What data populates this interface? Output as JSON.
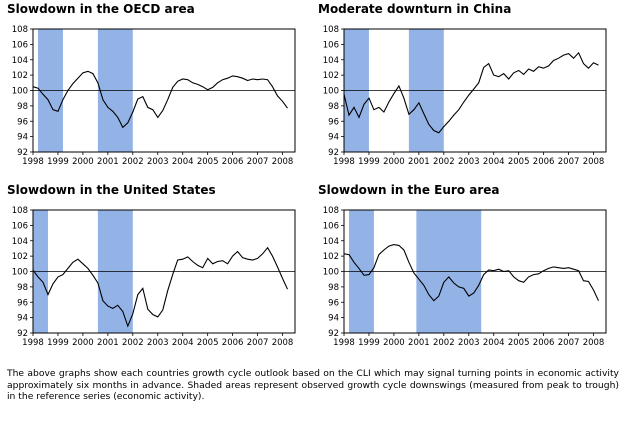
{
  "caption": "The above graphs show each countries growth cycle outlook based on the CLI which may signal turning points in economic activity approximately six months in advance. Shaded areas represent observed growth cycle downswings (measured from peak to trough) in the reference series (economic activity).",
  "colors": {
    "shade": "#93b3e6",
    "line": "#000000",
    "reference": "#000000",
    "frame": "#000000"
  },
  "chart_data": [
    {
      "type": "line",
      "title": "Slowdown in the OECD area",
      "ylim": [
        92,
        108
      ],
      "yticks": [
        92,
        94,
        96,
        98,
        100,
        102,
        104,
        106,
        108
      ],
      "xlim": [
        1998,
        2008.5
      ],
      "xticks": [
        "1998",
        "1999",
        "2000",
        "2001",
        "2002",
        "2003",
        "2004",
        "2005",
        "2006",
        "2007",
        "2008"
      ],
      "reference_line": 100,
      "shaded_periods": [
        [
          1998.2,
          1999.2
        ],
        [
          2000.6,
          2002.0
        ]
      ],
      "series": [
        {
          "x": [
            1998.0,
            1998.2,
            1998.4,
            1998.6,
            1998.8,
            1999.0,
            1999.2,
            1999.4,
            1999.6,
            1999.8,
            2000.0,
            2000.2,
            2000.4,
            2000.6,
            2000.8,
            2001.0,
            2001.2,
            2001.4,
            2001.6,
            2001.8,
            2002.0,
            2002.2,
            2002.4,
            2002.6,
            2002.8,
            2003.0,
            2003.2,
            2003.4,
            2003.6,
            2003.8,
            2004.0,
            2004.2,
            2004.4,
            2004.6,
            2004.8,
            2005.0,
            2005.2,
            2005.4,
            2005.6,
            2005.8,
            2006.0,
            2006.2,
            2006.4,
            2006.6,
            2006.8,
            2007.0,
            2007.2,
            2007.4,
            2007.6,
            2007.8,
            2008.0,
            2008.2
          ],
          "y": [
            100.5,
            100.3,
            99.5,
            98.8,
            97.5,
            97.3,
            98.8,
            100.0,
            100.9,
            101.6,
            102.3,
            102.5,
            102.2,
            101.0,
            98.8,
            97.8,
            97.3,
            96.5,
            95.2,
            95.8,
            97.2,
            98.9,
            99.2,
            97.8,
            97.5,
            96.5,
            97.4,
            98.8,
            100.4,
            101.2,
            101.5,
            101.4,
            101.0,
            100.8,
            100.5,
            100.1,
            100.4,
            101.0,
            101.4,
            101.6,
            101.9,
            101.8,
            101.6,
            101.3,
            101.5,
            101.4,
            101.5,
            101.4,
            100.5,
            99.3,
            98.6,
            97.7
          ]
        }
      ]
    },
    {
      "type": "line",
      "title": "Moderate downturn in China",
      "ylim": [
        92,
        108
      ],
      "yticks": [
        92,
        94,
        96,
        98,
        100,
        102,
        104,
        106,
        108
      ],
      "xlim": [
        1998,
        2008.5
      ],
      "xticks": [
        "1998",
        "1999",
        "2000",
        "2001",
        "2002",
        "2003",
        "2004",
        "2005",
        "2006",
        "2007",
        "2008"
      ],
      "reference_line": 100,
      "shaded_periods": [
        [
          1998.0,
          1999.0
        ],
        [
          2000.6,
          2002.0
        ]
      ],
      "series": [
        {
          "x": [
            1998.0,
            1998.2,
            1998.4,
            1998.6,
            1998.8,
            1999.0,
            1999.2,
            1999.4,
            1999.6,
            1999.8,
            2000.0,
            2000.2,
            2000.4,
            2000.6,
            2000.8,
            2001.0,
            2001.2,
            2001.4,
            2001.6,
            2001.8,
            2002.0,
            2002.2,
            2002.4,
            2002.6,
            2002.8,
            2003.0,
            2003.2,
            2003.4,
            2003.6,
            2003.8,
            2004.0,
            2004.2,
            2004.4,
            2004.6,
            2004.8,
            2005.0,
            2005.2,
            2005.4,
            2005.6,
            2005.8,
            2006.0,
            2006.2,
            2006.4,
            2006.6,
            2006.8,
            2007.0,
            2007.2,
            2007.4,
            2007.6,
            2007.8,
            2008.0,
            2008.2
          ],
          "y": [
            99.5,
            96.8,
            97.8,
            96.5,
            98.2,
            99.0,
            97.5,
            97.8,
            97.2,
            98.5,
            99.6,
            100.6,
            99.0,
            96.9,
            97.5,
            98.4,
            97.0,
            95.6,
            94.8,
            94.5,
            95.3,
            96.0,
            96.8,
            97.5,
            98.5,
            99.4,
            100.2,
            101.0,
            103.0,
            103.5,
            102.0,
            101.8,
            102.2,
            101.5,
            102.3,
            102.6,
            102.1,
            102.8,
            102.5,
            103.1,
            102.9,
            103.2,
            103.9,
            104.2,
            104.6,
            104.8,
            104.2,
            104.9,
            103.5,
            102.9,
            103.6,
            103.3
          ]
        }
      ]
    },
    {
      "type": "line",
      "title": "Slowdown in the United States",
      "ylim": [
        92,
        108
      ],
      "yticks": [
        92,
        94,
        96,
        98,
        100,
        102,
        104,
        106,
        108
      ],
      "xlim": [
        1998,
        2008.5
      ],
      "xticks": [
        "1998",
        "1999",
        "2000",
        "2001",
        "2002",
        "2003",
        "2004",
        "2005",
        "2006",
        "2007",
        "2008"
      ],
      "reference_line": 100,
      "shaded_periods": [
        [
          1998.0,
          1998.6
        ],
        [
          2000.6,
          2002.0
        ]
      ],
      "series": [
        {
          "x": [
            1998.0,
            1998.2,
            1998.4,
            1998.6,
            1998.8,
            1999.0,
            1999.2,
            1999.4,
            1999.6,
            1999.8,
            2000.0,
            2000.2,
            2000.4,
            2000.6,
            2000.8,
            2001.0,
            2001.2,
            2001.4,
            2001.6,
            2001.8,
            2002.0,
            2002.2,
            2002.4,
            2002.6,
            2002.8,
            2003.0,
            2003.2,
            2003.4,
            2003.6,
            2003.8,
            2004.0,
            2004.2,
            2004.4,
            2004.6,
            2004.8,
            2005.0,
            2005.2,
            2005.4,
            2005.6,
            2005.8,
            2006.0,
            2006.2,
            2006.4,
            2006.6,
            2006.8,
            2007.0,
            2007.2,
            2007.4,
            2007.6,
            2007.8,
            2008.0,
            2008.2
          ],
          "y": [
            100.2,
            99.3,
            98.6,
            97.0,
            98.4,
            99.3,
            99.6,
            100.4,
            101.2,
            101.6,
            101.0,
            100.4,
            99.5,
            98.5,
            96.2,
            95.5,
            95.2,
            95.6,
            94.8,
            92.9,
            94.5,
            97.0,
            97.8,
            95.1,
            94.4,
            94.1,
            95.0,
            97.5,
            99.6,
            101.5,
            101.6,
            101.9,
            101.3,
            100.8,
            100.5,
            101.7,
            101.0,
            101.3,
            101.4,
            101.0,
            102.0,
            102.6,
            101.8,
            101.6,
            101.5,
            101.7,
            102.3,
            103.1,
            102.0,
            100.6,
            99.1,
            97.7
          ]
        }
      ]
    },
    {
      "type": "line",
      "title": "Slowdown in the Euro area",
      "ylim": [
        92,
        108
      ],
      "yticks": [
        92,
        94,
        96,
        98,
        100,
        102,
        104,
        106,
        108
      ],
      "xlim": [
        1998,
        2008.5
      ],
      "xticks": [
        "1998",
        "1999",
        "2000",
        "2001",
        "2002",
        "2003",
        "2004",
        "2005",
        "2006",
        "2007",
        "2008"
      ],
      "reference_line": 100,
      "shaded_periods": [
        [
          1998.2,
          1999.2
        ],
        [
          2000.9,
          2003.5
        ]
      ],
      "series": [
        {
          "x": [
            1998.0,
            1998.2,
            1998.4,
            1998.6,
            1998.8,
            1999.0,
            1999.2,
            1999.4,
            1999.6,
            1999.8,
            2000.0,
            2000.2,
            2000.4,
            2000.6,
            2000.8,
            2001.0,
            2001.2,
            2001.4,
            2001.6,
            2001.8,
            2002.0,
            2002.2,
            2002.4,
            2002.6,
            2002.8,
            2003.0,
            2003.2,
            2003.4,
            2003.6,
            2003.8,
            2004.0,
            2004.2,
            2004.4,
            2004.6,
            2004.8,
            2005.0,
            2005.2,
            2005.4,
            2005.6,
            2005.8,
            2006.0,
            2006.2,
            2006.4,
            2006.6,
            2006.8,
            2007.0,
            2007.2,
            2007.4,
            2007.6,
            2007.8,
            2008.0,
            2008.2
          ],
          "y": [
            102.3,
            102.2,
            101.2,
            100.4,
            99.5,
            99.6,
            100.5,
            102.2,
            102.8,
            103.3,
            103.5,
            103.4,
            102.8,
            101.2,
            99.8,
            99.0,
            98.2,
            97.0,
            96.2,
            96.8,
            98.6,
            99.3,
            98.5,
            98.0,
            97.8,
            96.8,
            97.2,
            98.2,
            99.6,
            100.2,
            100.1,
            100.3,
            100.0,
            100.1,
            99.3,
            98.8,
            98.6,
            99.3,
            99.6,
            99.7,
            100.1,
            100.4,
            100.6,
            100.5,
            100.4,
            100.5,
            100.3,
            100.1,
            98.8,
            98.7,
            97.6,
            96.2
          ]
        }
      ]
    }
  ]
}
